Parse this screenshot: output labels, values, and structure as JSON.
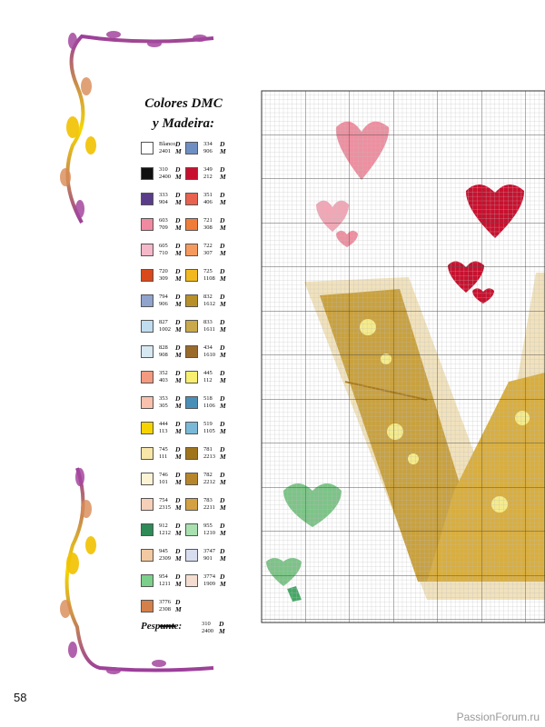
{
  "header": {
    "title_line1": "Colores DMC",
    "title_line2": "y Madeira:"
  },
  "letters": {
    "d": "D",
    "m": "M"
  },
  "legend": {
    "left": [
      {
        "dmc": "Blanco",
        "madeira": "2401",
        "color": "#ffffff"
      },
      {
        "dmc": "310",
        "madeira": "2400",
        "color": "#111111"
      },
      {
        "dmc": "333",
        "madeira": "904",
        "color": "#5a3d8a"
      },
      {
        "dmc": "603",
        "madeira": "709",
        "color": "#f08aa0"
      },
      {
        "dmc": "605",
        "madeira": "710",
        "color": "#f4b8c8"
      },
      {
        "dmc": "720",
        "madeira": "309",
        "color": "#d9491c"
      },
      {
        "dmc": "794",
        "madeira": "906",
        "color": "#8fa3cc"
      },
      {
        "dmc": "827",
        "madeira": "1002",
        "color": "#c0dcef"
      },
      {
        "dmc": "828",
        "madeira": "908",
        "color": "#d6e8f2"
      },
      {
        "dmc": "352",
        "madeira": "403",
        "color": "#f49a80"
      },
      {
        "dmc": "353",
        "madeira": "305",
        "color": "#f8c0ad"
      },
      {
        "dmc": "444",
        "madeira": "113",
        "color": "#f5d300"
      },
      {
        "dmc": "745",
        "madeira": "111",
        "color": "#f8e6a8"
      },
      {
        "dmc": "746",
        "madeira": "101",
        "color": "#fbf3d4"
      },
      {
        "dmc": "754",
        "madeira": "2315",
        "color": "#f6cfb8"
      },
      {
        "dmc": "912",
        "madeira": "1212",
        "color": "#2e8b57"
      },
      {
        "dmc": "945",
        "madeira": "2309",
        "color": "#f2c9a0"
      },
      {
        "dmc": "954",
        "madeira": "1211",
        "color": "#7ccf8a"
      },
      {
        "dmc": "3776",
        "madeira": "2308",
        "color": "#d5804a"
      }
    ],
    "right": [
      {
        "dmc": "334",
        "madeira": "906",
        "color": "#6f8fc2"
      },
      {
        "dmc": "349",
        "madeira": "212",
        "color": "#c8102e"
      },
      {
        "dmc": "351",
        "madeira": "406",
        "color": "#e8624f"
      },
      {
        "dmc": "721",
        "madeira": "308",
        "color": "#f07c3a"
      },
      {
        "dmc": "722",
        "madeira": "307",
        "color": "#f59a5e"
      },
      {
        "dmc": "725",
        "madeira": "1108",
        "color": "#f2b91f"
      },
      {
        "dmc": "832",
        "madeira": "1612",
        "color": "#b8902a"
      },
      {
        "dmc": "833",
        "madeira": "1611",
        "color": "#c9a94a"
      },
      {
        "dmc": "434",
        "madeira": "1610",
        "color": "#9a6a2a"
      },
      {
        "dmc": "445",
        "madeira": "112",
        "color": "#f8ef70"
      },
      {
        "dmc": "518",
        "madeira": "1106",
        "color": "#4a8fb8"
      },
      {
        "dmc": "519",
        "madeira": "1105",
        "color": "#7ab8d8"
      },
      {
        "dmc": "781",
        "madeira": "2213",
        "color": "#a0741a"
      },
      {
        "dmc": "782",
        "madeira": "2212",
        "color": "#b8862a"
      },
      {
        "dmc": "783",
        "madeira": "2211",
        "color": "#d4a040"
      },
      {
        "dmc": "955",
        "madeira": "1210",
        "color": "#a9e0b0"
      },
      {
        "dmc": "3747",
        "madeira": "901",
        "color": "#d8dcef"
      },
      {
        "dmc": "3774",
        "madeira": "1909",
        "color": "#f4dcd0"
      }
    ]
  },
  "backstitch": {
    "label": "Pespunte:",
    "dmc": "310",
    "madeira": "2400"
  },
  "page_number": "58",
  "watermark": "PassionForum.ru"
}
